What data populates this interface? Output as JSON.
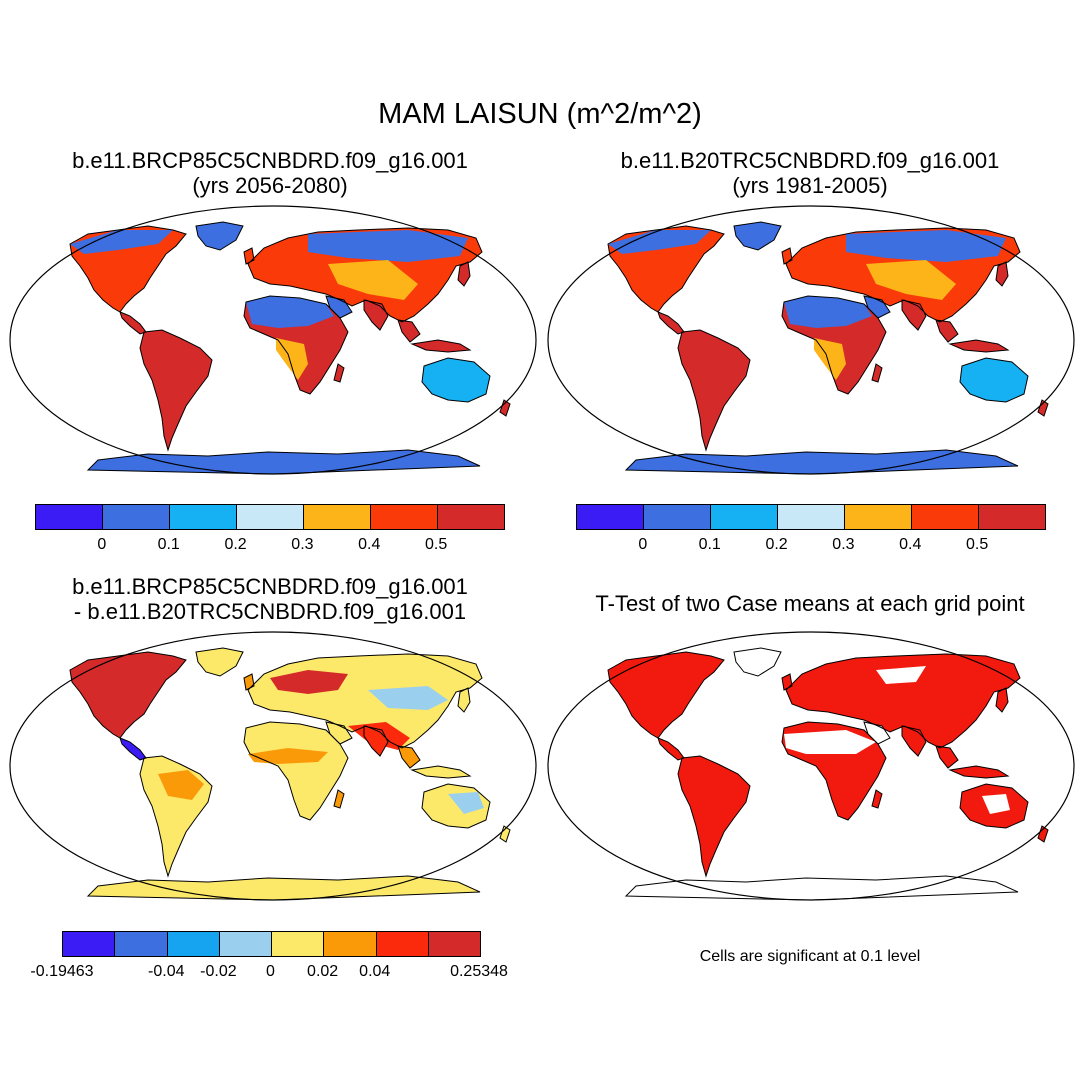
{
  "title": "MAM LAISUN (m^2/m^2)",
  "panels": [
    {
      "name": "future",
      "title_line1": "b.e11.BRCP85C5CNBDRD.f09_g16.001",
      "title_line2": "(yrs 2056-2080)"
    },
    {
      "name": "historical",
      "title_line1": "b.e11.B20TRC5CNBDRD.f09_g16.001",
      "title_line2": "(yrs 1981-2005)"
    },
    {
      "name": "difference",
      "title_line1": "b.e11.BRCP85C5CNBDRD.f09_g16.001",
      "title_line2": "- b.e11.B20TRC5CNBDRD.f09_g16.001"
    },
    {
      "name": "ttest",
      "title_line1": "T-Test of two Case means at each grid point"
    }
  ],
  "colorbar_main": {
    "colors": [
      "#3b1cf5",
      "#3d6fe0",
      "#16b1f2",
      "#c8e8f7",
      "#fcb419",
      "#fb3a0a",
      "#d42a2a"
    ],
    "labels": [
      "0",
      "0.1",
      "0.2",
      "0.3",
      "0.4",
      "0.5"
    ]
  },
  "colorbar_main_2": {
    "colors": [
      "#3b1cf5",
      "#3d6fe0",
      "#16b1f2",
      "#c8e8f7",
      "#fcb419",
      "#fb3a0a",
      "#d42a2a"
    ],
    "labels": [
      "0",
      "0.1",
      "0.2",
      "0.3",
      "0.4",
      "0.5"
    ]
  },
  "colorbar_diff": {
    "colors": [
      "#3b1cf5",
      "#3d6fe0",
      "#16a4f0",
      "#9bcfee",
      "#fce96a",
      "#fb9a08",
      "#fb2a0c",
      "#d42a2a"
    ],
    "labels": [
      "-0.19463",
      "-0.04",
      "-0.02",
      "0",
      "0.02",
      "0.04",
      "0.25348"
    ]
  },
  "ttest_note": "Cells are significant at 0.1 level",
  "colors": {
    "ocean": "#ffffff",
    "coast": "#000000",
    "signif": "#f21a0e"
  }
}
